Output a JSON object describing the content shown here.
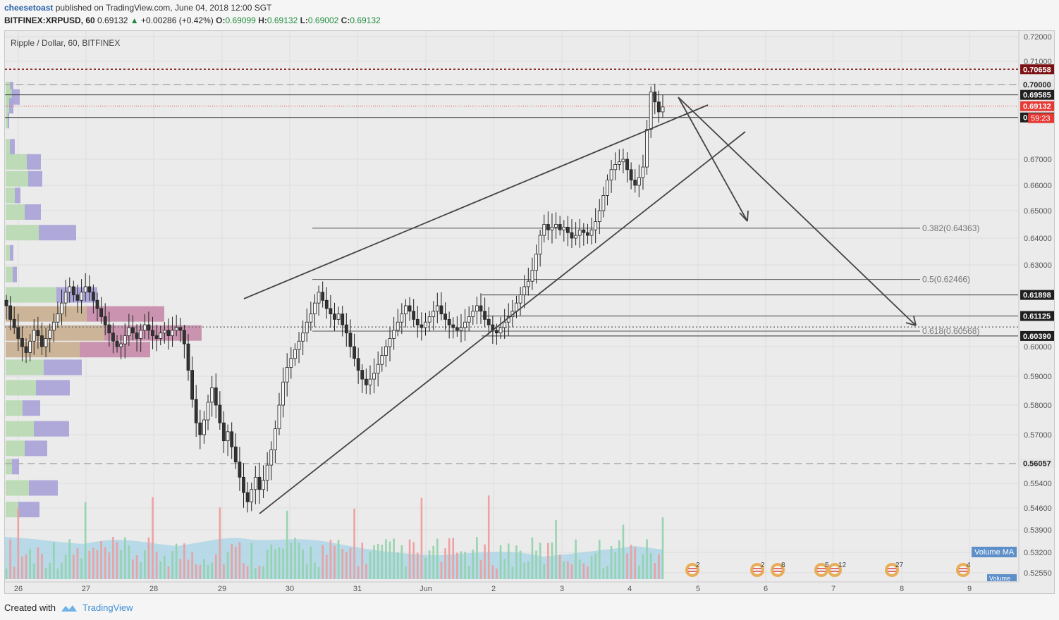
{
  "header": {
    "author": "cheesetoast",
    "published_text": "published on TradingView.com, June 04, 2018 12:00 SGT",
    "symbol": "BITFINEX:XRPUSD, 60",
    "price": "0.69132",
    "change": "+0.00286 (+0.42%)",
    "open_label": "O:",
    "open": "0.69099",
    "high_label": "H:",
    "high": "0.69132",
    "low_label": "L:",
    "low": "0.69002",
    "close_label": "C:",
    "close": "0.69132"
  },
  "chart_title": "Ripple / Dollar, 60, BITFINEX",
  "footer": {
    "created_with": "Created with",
    "brand": "TradingView"
  },
  "colors": {
    "up": "#26a69a",
    "down": "#ef5350",
    "accent": "#2962ff",
    "last_price": "#e53935",
    "resistance": "#7b1113"
  },
  "chart_data": {
    "type": "candlestick",
    "title": "Ripple / Dollar, 60, BITFINEX",
    "ylim": [
      0.5235,
      0.7235
    ],
    "y_ticks": [
      "0.72000",
      "0.71000",
      "0.70000",
      "0.67000",
      "0.66000",
      "0.65000",
      "0.64000",
      "0.63000",
      "0.60000",
      "0.59000",
      "0.58000",
      "0.57000",
      "0.55400",
      "0.54600",
      "0.53900",
      "0.53200",
      "0.52550"
    ],
    "x_ticks": [
      "26",
      "27",
      "28",
      "29",
      "30",
      "31",
      "Jun",
      "2",
      "3",
      "4",
      "5",
      "6",
      "7",
      "8",
      "9"
    ],
    "price_labels": [
      {
        "value": 0.70658,
        "text": "0.70658",
        "style": "dark-red"
      },
      {
        "value": 0.7,
        "text": "0.70000",
        "style": "light"
      },
      {
        "value": 0.69585,
        "text": "0.69585",
        "style": "black"
      },
      {
        "value": 0.69132,
        "text": "0.69132",
        "style": "red"
      },
      {
        "value": 0.68678,
        "text": "0.68678",
        "style": "black"
      },
      {
        "value": 0.61898,
        "text": "0.61898",
        "style": "black"
      },
      {
        "value": 0.61125,
        "text": "0.61125",
        "style": "black"
      },
      {
        "value": 0.6039,
        "text": "0.60390",
        "style": "black"
      },
      {
        "value": 0.56057,
        "text": "0.56057",
        "style": "light"
      }
    ],
    "countdown": "59:23",
    "fib_levels": [
      {
        "ratio": "0.382",
        "value": 0.64363,
        "text": "0.382(0.64363)"
      },
      {
        "ratio": "0.5",
        "value": 0.62466,
        "text": "0.5(0.62466)"
      },
      {
        "ratio": "0.618",
        "value": 0.60568,
        "text": "0.618(0.60568)"
      }
    ],
    "candles_close": [
      0.615,
      0.61,
      0.607,
      0.603,
      0.6,
      0.598,
      0.602,
      0.606,
      0.604,
      0.6,
      0.603,
      0.606,
      0.609,
      0.612,
      0.616,
      0.62,
      0.622,
      0.619,
      0.617,
      0.62,
      0.622,
      0.62,
      0.617,
      0.614,
      0.611,
      0.608,
      0.605,
      0.602,
      0.6,
      0.601,
      0.604,
      0.607,
      0.605,
      0.603,
      0.606,
      0.608,
      0.606,
      0.604,
      0.603,
      0.605,
      0.606,
      0.604,
      0.606,
      0.607,
      0.606,
      0.601,
      0.592,
      0.582,
      0.574,
      0.57,
      0.575,
      0.581,
      0.586,
      0.58,
      0.574,
      0.568,
      0.571,
      0.566,
      0.561,
      0.556,
      0.551,
      0.548,
      0.552,
      0.556,
      0.552,
      0.555,
      0.56,
      0.565,
      0.572,
      0.58,
      0.588,
      0.593,
      0.596,
      0.599,
      0.602,
      0.605,
      0.609,
      0.612,
      0.616,
      0.62,
      0.617,
      0.614,
      0.612,
      0.61,
      0.612,
      0.608,
      0.605,
      0.6,
      0.596,
      0.592,
      0.589,
      0.587,
      0.589,
      0.591,
      0.594,
      0.597,
      0.6,
      0.603,
      0.606,
      0.609,
      0.612,
      0.615,
      0.613,
      0.61,
      0.608,
      0.607,
      0.609,
      0.611,
      0.613,
      0.615,
      0.612,
      0.61,
      0.608,
      0.607,
      0.606,
      0.607,
      0.609,
      0.611,
      0.613,
      0.615,
      0.613,
      0.61,
      0.608,
      0.606,
      0.605,
      0.607,
      0.609,
      0.611,
      0.613,
      0.616,
      0.619,
      0.622,
      0.624,
      0.628,
      0.634,
      0.641,
      0.645,
      0.643,
      0.644,
      0.645,
      0.643,
      0.644,
      0.642,
      0.64,
      0.641,
      0.643,
      0.642,
      0.641,
      0.643,
      0.646,
      0.65,
      0.656,
      0.662,
      0.666,
      0.668,
      0.669,
      0.67,
      0.666,
      0.662,
      0.66,
      0.663,
      0.667,
      0.682,
      0.697,
      0.693,
      0.689,
      0.691
    ],
    "volume_profile": [
      {
        "price": 0.698,
        "up": 6,
        "down": 5
      },
      {
        "price": 0.695,
        "up": 9,
        "down": 11
      },
      {
        "price": 0.6915,
        "up": 5,
        "down": 6
      },
      {
        "price": 0.6855,
        "up": 3,
        "down": 2
      },
      {
        "price": 0.675,
        "up": 6,
        "down": 7
      },
      {
        "price": 0.669,
        "up": 30,
        "down": 20
      },
      {
        "price": 0.6625,
        "up": 32,
        "down": 20
      },
      {
        "price": 0.656,
        "up": 13,
        "down": 8
      },
      {
        "price": 0.6495,
        "up": 27,
        "down": 23
      },
      {
        "price": 0.642,
        "up": 47,
        "down": 53
      },
      {
        "price": 0.6345,
        "up": 6,
        "down": 5
      },
      {
        "price": 0.6265,
        "up": 10,
        "down": 6
      },
      {
        "price": 0.619,
        "up": 72,
        "down": 58
      },
      {
        "price": 0.612,
        "up": 115,
        "down": 110
      },
      {
        "price": 0.605,
        "up": 140,
        "down": 138
      },
      {
        "price": 0.599,
        "up": 105,
        "down": 100
      },
      {
        "price": 0.593,
        "up": 54,
        "down": 54
      },
      {
        "price": 0.586,
        "up": 43,
        "down": 48
      },
      {
        "price": 0.579,
        "up": 24,
        "down": 25
      },
      {
        "price": 0.572,
        "up": 40,
        "down": 50
      },
      {
        "price": 0.5655,
        "up": 27,
        "down": 32
      },
      {
        "price": 0.5595,
        "up": 9,
        "down": 10
      },
      {
        "price": 0.5525,
        "up": 33,
        "down": 41
      },
      {
        "price": 0.5455,
        "up": 18,
        "down": 30
      }
    ],
    "volume_ma_label": "Volume MA",
    "volume_label": "Volume",
    "events": [
      {
        "x": "5",
        "count": "2"
      },
      {
        "x": "6",
        "count": "2"
      },
      {
        "x": "6",
        "count": "8"
      },
      {
        "x": "7",
        "count": "5"
      },
      {
        "x": "7",
        "count": "12"
      },
      {
        "x": "8",
        "count": "27"
      },
      {
        "x": "9",
        "count": "4"
      }
    ],
    "grid": true
  }
}
